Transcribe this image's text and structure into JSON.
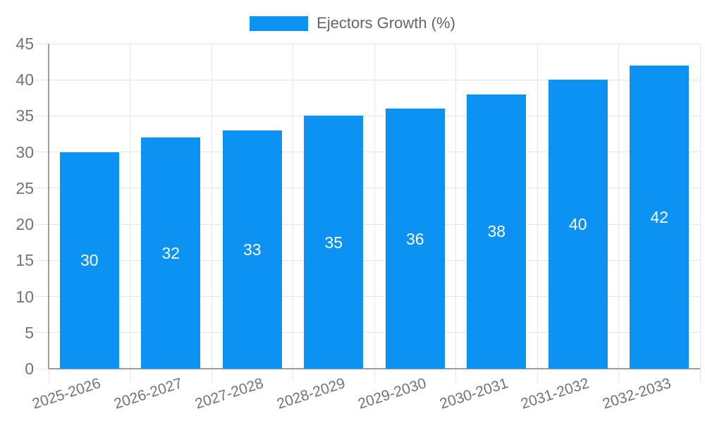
{
  "chart_data": {
    "type": "bar",
    "title": "",
    "legend": "Ejectors Growth (%)",
    "legend_position": "top",
    "categories": [
      "2025-2026",
      "2026-2027",
      "2027-2028",
      "2028-2029",
      "2029-2030",
      "2030-2031",
      "2031-2032",
      "2032-2033"
    ],
    "values": [
      30,
      32,
      33,
      35,
      36,
      38,
      40,
      42
    ],
    "bar_labels": [
      "30",
      "32",
      "33",
      "35",
      "36",
      "38",
      "40",
      "42"
    ],
    "xlabel": "",
    "ylabel": "",
    "ylim": [
      0,
      45
    ],
    "yticks": [
      0,
      5,
      10,
      15,
      20,
      25,
      30,
      35,
      40,
      45
    ],
    "grid": true,
    "colors": {
      "bar": "#0b92f2",
      "grid": "#e6e6e6",
      "axis": "#9e9e9e",
      "tick_label": "#737373",
      "legend_text": "#666666",
      "bar_label": "#ffffff"
    }
  }
}
